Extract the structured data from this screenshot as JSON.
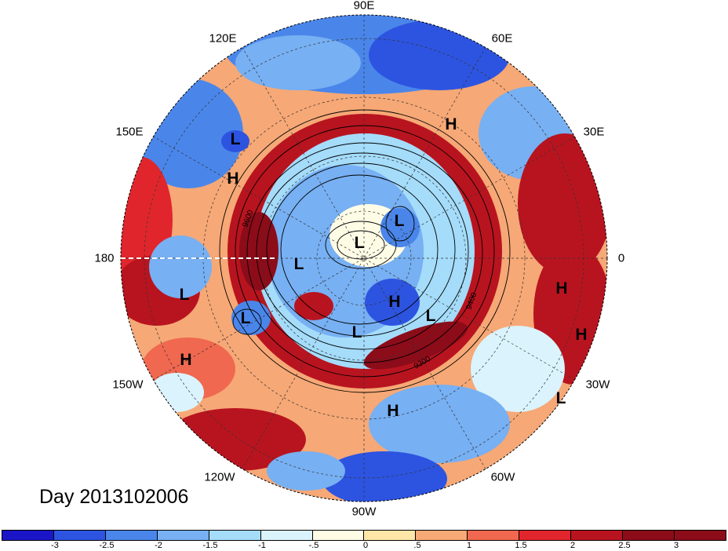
{
  "map": {
    "projection": "north-polar-stereographic",
    "lon_labels": [
      {
        "text": "90E",
        "lon": 90
      },
      {
        "text": "60E",
        "lon": 60
      },
      {
        "text": "30E",
        "lon": 30
      },
      {
        "text": "0",
        "lon": 0
      },
      {
        "text": "30W",
        "lon": -30
      },
      {
        "text": "60W",
        "lon": -60
      },
      {
        "text": "90W",
        "lon": -90
      },
      {
        "text": "120W",
        "lon": -120
      },
      {
        "text": "150W",
        "lon": -150
      },
      {
        "text": "180",
        "lon": 180
      },
      {
        "text": "150E",
        "lon": 150
      },
      {
        "text": "120E",
        "lon": 120
      }
    ],
    "pressure_centers": [
      {
        "text": "H",
        "region": "Scandinavia"
      },
      {
        "text": "L",
        "region": "Okhotsk"
      },
      {
        "text": "H",
        "region": "Kamchatka"
      },
      {
        "text": "L",
        "region": "Kara Sea"
      },
      {
        "text": "L",
        "region": "Arctic Ocean"
      },
      {
        "text": "L",
        "region": "Beaufort Sea"
      },
      {
        "text": "L",
        "region": "Bering Sea"
      },
      {
        "text": "L",
        "region": "Gulf of Alaska"
      },
      {
        "text": "H",
        "region": "Baffin Bay"
      },
      {
        "text": "L",
        "region": "Hudson Bay"
      },
      {
        "text": "L",
        "region": "Labrador"
      },
      {
        "text": "H",
        "region": "North Atlantic East"
      },
      {
        "text": "H",
        "region": "North Atlantic"
      },
      {
        "text": "L",
        "region": "Central Atlantic"
      },
      {
        "text": "H",
        "region": "North Pacific"
      },
      {
        "text": "H",
        "region": "Southeast US"
      }
    ],
    "contour_labels": [
      "9600",
      "9400",
      "9300"
    ],
    "dateline_marker_color": "#ffffff"
  },
  "title": "Day 2013102006",
  "colorbar": {
    "colors": [
      "#1a16c8",
      "#2d54e0",
      "#4a86ea",
      "#77b0f3",
      "#a4dcfa",
      "#daf3fc",
      "#fffce6",
      "#fde6a8",
      "#f6a876",
      "#f0684f",
      "#e0262c",
      "#b8141f",
      "#8c0c1a"
    ],
    "ticks": [
      "-3",
      "-2.5",
      "-2",
      "-1.5",
      "-1",
      "-.5",
      "0",
      ".5",
      "1",
      "1.5",
      "2",
      "2.5",
      "3"
    ]
  }
}
